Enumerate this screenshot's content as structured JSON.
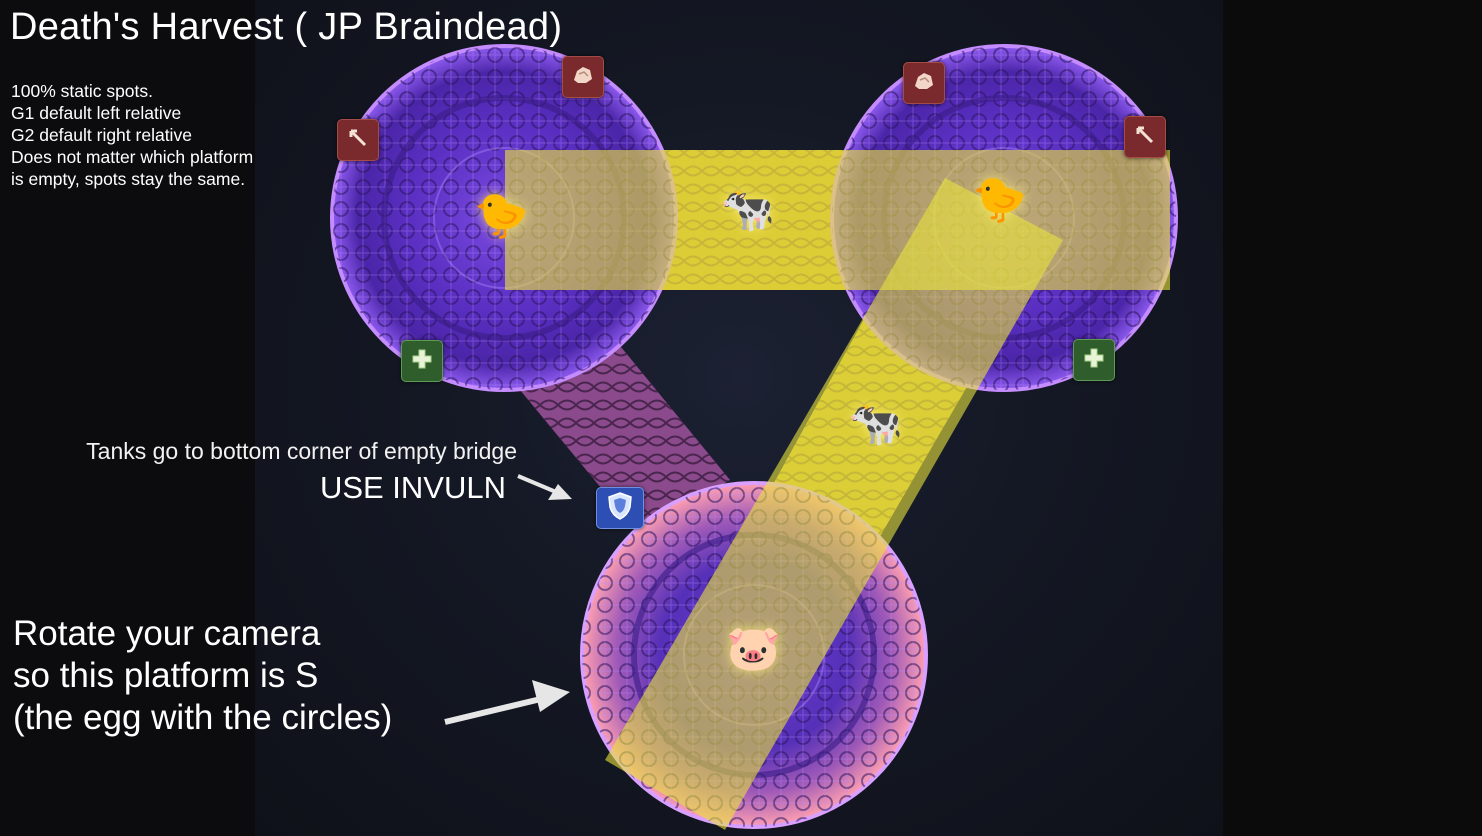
{
  "title": "Death's Harvest ( JP Braindead)",
  "notes": [
    "100% static spots.",
    "G1 default left relative",
    "G2 default right relative",
    "Does not matter which platform",
    "is empty, spots stay the same."
  ],
  "tank_note": "Tanks go to bottom corner of empty bridge",
  "invuln_note": "USE INVULN",
  "camera_note": [
    "Rotate your camera",
    "so this platform is S",
    "(the egg with the circles)"
  ],
  "markers": {
    "rock": "rock-icon",
    "arrow": "arrow-icon",
    "heal": "heal-icon",
    "shield": "shield-icon"
  },
  "animals": {
    "chick_left": "🐤",
    "chick_right": "🐤",
    "cow_top": "🐄",
    "cow_bridge": "🐄",
    "pig": "🐷"
  },
  "colors": {
    "platform_purple": "#6a3bd6",
    "platform_rim": "#c58cff",
    "highlight_yellow": "#e8e23c",
    "pink_glow": "#ff8fa8"
  }
}
